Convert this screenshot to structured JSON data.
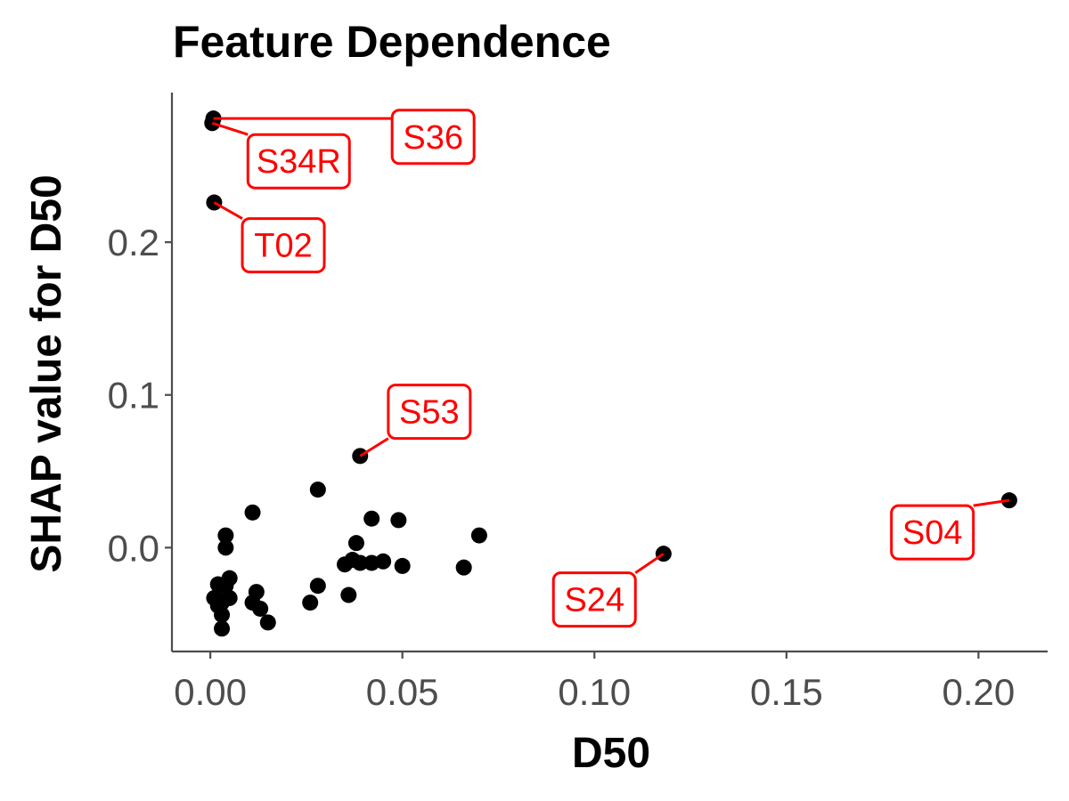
{
  "chart_data": {
    "type": "scatter",
    "title": "Feature Dependence",
    "xlabel": "D50",
    "ylabel": "SHAP value for D50",
    "xlim": [
      -0.01,
      0.218
    ],
    "ylim": [
      -0.068,
      0.298
    ],
    "xticks": [
      0.0,
      0.05,
      0.1,
      0.15,
      0.2
    ],
    "xtick_labels": [
      "0.00",
      "0.05",
      "0.10",
      "0.15",
      "0.20"
    ],
    "yticks": [
      0.0,
      0.1,
      0.2
    ],
    "ytick_labels": [
      "0.0",
      "0.1",
      "0.2"
    ],
    "grid": false,
    "point_color": "#000000",
    "annotation_color": "#ff0000",
    "points": [
      {
        "x": 0.0008,
        "y": 0.281
      },
      {
        "x": 0.0005,
        "y": 0.278
      },
      {
        "x": 0.001,
        "y": 0.226
      },
      {
        "x": 0.039,
        "y": 0.06
      },
      {
        "x": 0.028,
        "y": 0.038
      },
      {
        "x": 0.011,
        "y": 0.023
      },
      {
        "x": 0.042,
        "y": 0.019
      },
      {
        "x": 0.049,
        "y": 0.018
      },
      {
        "x": 0.208,
        "y": 0.031
      },
      {
        "x": 0.07,
        "y": 0.008
      },
      {
        "x": 0.004,
        "y": 0.008
      },
      {
        "x": 0.038,
        "y": 0.003
      },
      {
        "x": 0.004,
        "y": 0.0
      },
      {
        "x": 0.118,
        "y": -0.004
      },
      {
        "x": 0.037,
        "y": -0.008
      },
      {
        "x": 0.035,
        "y": -0.011
      },
      {
        "x": 0.039,
        "y": -0.01
      },
      {
        "x": 0.042,
        "y": -0.01
      },
      {
        "x": 0.045,
        "y": -0.009
      },
      {
        "x": 0.05,
        "y": -0.012
      },
      {
        "x": 0.066,
        "y": -0.013
      },
      {
        "x": 0.005,
        "y": -0.02
      },
      {
        "x": 0.002,
        "y": -0.024
      },
      {
        "x": 0.004,
        "y": -0.025
      },
      {
        "x": 0.028,
        "y": -0.025
      },
      {
        "x": 0.012,
        "y": -0.029
      },
      {
        "x": 0.036,
        "y": -0.031
      },
      {
        "x": 0.001,
        "y": -0.033
      },
      {
        "x": 0.002,
        "y": -0.034
      },
      {
        "x": 0.005,
        "y": -0.033
      },
      {
        "x": 0.003,
        "y": -0.036
      },
      {
        "x": 0.011,
        "y": -0.036
      },
      {
        "x": 0.026,
        "y": -0.036
      },
      {
        "x": 0.002,
        "y": -0.038
      },
      {
        "x": 0.013,
        "y": -0.04
      },
      {
        "x": 0.003,
        "y": -0.044
      },
      {
        "x": 0.015,
        "y": -0.049
      },
      {
        "x": 0.003,
        "y": -0.053
      }
    ],
    "annotations": [
      {
        "label": "S36",
        "x": 0.0008,
        "y": 0.281,
        "label_x": 0.058,
        "label_y": 0.269
      },
      {
        "label": "S34R",
        "x": 0.0005,
        "y": 0.278,
        "label_x": 0.023,
        "label_y": 0.253
      },
      {
        "label": "T02",
        "x": 0.001,
        "y": 0.226,
        "label_x": 0.019,
        "label_y": 0.198
      },
      {
        "label": "S53",
        "x": 0.039,
        "y": 0.06,
        "label_x": 0.057,
        "label_y": 0.089
      },
      {
        "label": "S24",
        "x": 0.118,
        "y": -0.004,
        "label_x": 0.1,
        "label_y": -0.034
      },
      {
        "label": "S04",
        "x": 0.208,
        "y": 0.031,
        "label_x": 0.188,
        "label_y": 0.01
      }
    ]
  }
}
